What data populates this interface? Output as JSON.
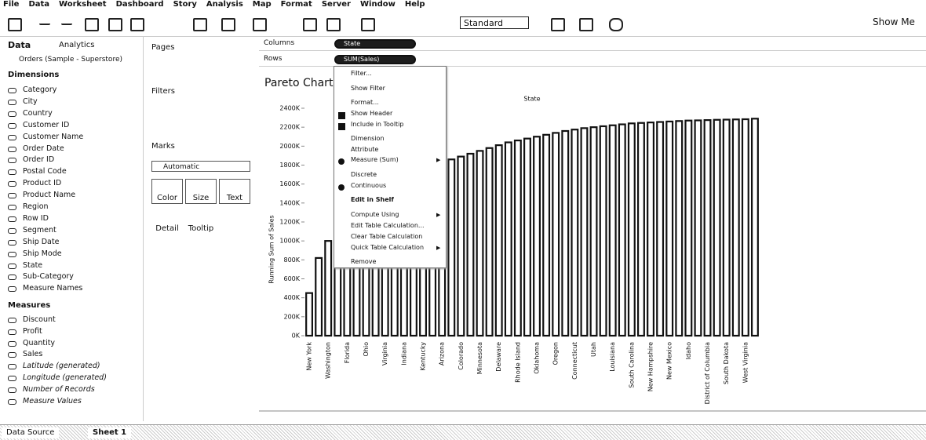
{
  "menu_bar": [
    "File",
    "Data",
    "Worksheet",
    "Dashboard",
    "Story",
    "Analysis",
    "Map",
    "Format",
    "Server",
    "Window",
    "Help"
  ],
  "toolbar": {
    "fit": "Standard",
    "show_me": "Show Me"
  },
  "data_pane": {
    "tabs": [
      "Data",
      "Analytics"
    ],
    "source": "Orders (Sample - Superstore)",
    "dimensions_title": "Dimensions",
    "dimensions": [
      "Category",
      "City",
      "Country",
      "Customer ID",
      "Customer Name",
      "Order Date",
      "Order ID",
      "Postal Code",
      "Product ID",
      "Product Name",
      "Region",
      "Row ID",
      "Segment",
      "Ship Date",
      "Ship Mode",
      "State",
      "Sub-Category",
      "Measure Names"
    ],
    "measures_title": "Measures",
    "measures": [
      "Discount",
      "Profit",
      "Quantity",
      "Sales",
      "Latitude (generated)",
      "Longitude (generated)",
      "Number of Records",
      "Measure Values"
    ]
  },
  "cards": {
    "pages": "Pages",
    "filters": "Filters",
    "marks": "Marks",
    "mark_type": "Automatic",
    "buttons": [
      "Color",
      "Size",
      "Text",
      "Detail",
      "Tooltip"
    ]
  },
  "shelves": {
    "columns": "Columns",
    "columns_pill": "State",
    "rows": "Rows",
    "rows_pill": "SUM(Sales)"
  },
  "context_menu": [
    {
      "label": "Filter..."
    },
    {
      "label": "Show Filter"
    },
    {
      "label": "Format..."
    },
    {
      "label": "Show Header",
      "checked": true
    },
    {
      "label": "Include in Tooltip",
      "checked": true
    },
    {
      "label": "Dimension"
    },
    {
      "label": "Attribute"
    },
    {
      "label": "Measure (Sum)",
      "selected": true,
      "submenu": true
    },
    {
      "label": "Discrete"
    },
    {
      "label": "Continuous",
      "selected": true
    },
    {
      "label": "Edit in Shelf",
      "bold": true
    },
    {
      "label": "Compute Using",
      "submenu": true
    },
    {
      "label": "Edit Table Calculation..."
    },
    {
      "label": "Clear Table Calculation"
    },
    {
      "label": "Quick Table Calculation",
      "submenu": true
    },
    {
      "label": "Remove"
    }
  ],
  "chart_data": {
    "type": "bar",
    "title": "Pareto Chart",
    "x_label": "State",
    "y_label": "Running Sum of Sales",
    "categories": [
      "New York",
      null,
      "Washington",
      null,
      "Florida",
      null,
      "Ohio",
      null,
      "Virginia",
      null,
      "Indiana",
      null,
      "Kentucky",
      null,
      "Arizona",
      null,
      "Colorado",
      null,
      "Minnesota",
      null,
      "Delaware",
      null,
      "Rhode Island",
      null,
      "Oklahoma",
      null,
      "Oregon",
      null,
      "Connecticut",
      null,
      "Utah",
      null,
      "Louisiana",
      null,
      "South Carolina",
      null,
      "New Hampshire",
      null,
      "New Mexico",
      null,
      "Idaho",
      null,
      "District of Columbia",
      null,
      "South Dakota",
      null,
      "West Virginia",
      null
    ],
    "values": [
      450000,
      820000,
      1000000,
      1160000,
      1280000,
      1380000,
      1460000,
      1530000,
      1590000,
      1640000,
      1680000,
      1720000,
      1760000,
      1790000,
      1820000,
      1860000,
      1890000,
      1920000,
      1950000,
      1980000,
      2010000,
      2040000,
      2060000,
      2080000,
      2100000,
      2120000,
      2140000,
      2160000,
      2175000,
      2190000,
      2200000,
      2210000,
      2220000,
      2230000,
      2240000,
      2245000,
      2250000,
      2255000,
      2260000,
      2265000,
      2270000,
      2272000,
      2275000,
      2278000,
      2280000,
      2282000,
      2284000,
      2290000
    ],
    "color": "#ffffff",
    "ylim": [
      0,
      2400000
    ],
    "yticks": [
      {
        "value": 0,
        "label": "0K"
      },
      {
        "value": 200000,
        "label": "200K"
      },
      {
        "value": 400000,
        "label": "400K"
      },
      {
        "value": 600000,
        "label": "600K"
      },
      {
        "value": 800000,
        "label": "800K"
      },
      {
        "value": 1000000,
        "label": "1000K"
      },
      {
        "value": 1200000,
        "label": "1200K"
      },
      {
        "value": 1400000,
        "label": "1400K"
      },
      {
        "value": 1600000,
        "label": "1600K"
      },
      {
        "value": 1800000,
        "label": "1800K"
      },
      {
        "value": 2000000,
        "label": "2000K"
      },
      {
        "value": 2200000,
        "label": "2200K"
      },
      {
        "value": 2400000,
        "label": "2400K"
      }
    ],
    "grid": false
  },
  "tabs": [
    "Data Source",
    "Sheet 1"
  ]
}
